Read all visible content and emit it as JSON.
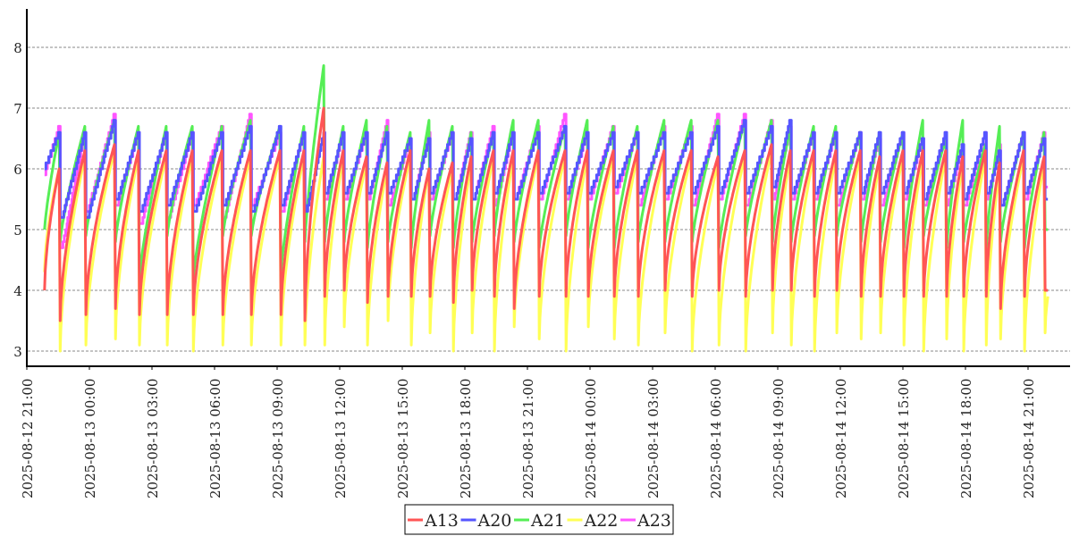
{
  "chart_data": {
    "type": "line",
    "title": "",
    "xlabel": "",
    "ylabel": "",
    "ylim": [
      2.75,
      8.63
    ],
    "y_ticks": [
      "3",
      "4",
      "5",
      "6",
      "7",
      "8"
    ],
    "grid": "horizontal dashed",
    "legend_position": "bottom-center",
    "x_range": [
      "2025-08-12 21:00",
      "2025-08-14 23:00"
    ],
    "x_ticks": [
      "2025-08-12 21:00",
      "2025-08-13 00:00",
      "2025-08-13 03:00",
      "2025-08-13 06:00",
      "2025-08-13 09:00",
      "2025-08-13 12:00",
      "2025-08-13 15:00",
      "2025-08-13 18:00",
      "2025-08-13 21:00",
      "2025-08-14 00:00",
      "2025-08-14 03:00",
      "2025-08-14 06:00",
      "2025-08-14 09:00",
      "2025-08-14 12:00",
      "2025-08-14 15:00",
      "2025-08-14 18:00",
      "2025-08-14 21:00"
    ],
    "data_start": "2025-08-12 21:51",
    "data_end": "2025-08-14 21:57",
    "cycle_peak_times": [
      "2025-08-12 22:33",
      "2025-08-12 23:47",
      "2025-08-13 01:12",
      "2025-08-13 02:21",
      "2025-08-13 03:41",
      "2025-08-13 04:56",
      "2025-08-13 06:21",
      "2025-08-13 07:43",
      "2025-08-13 09:08",
      "2025-08-13 10:17",
      "2025-08-13 11:14",
      "2025-08-13 12:10",
      "2025-08-13 13:17",
      "2025-08-13 14:16",
      "2025-08-13 15:23",
      "2025-08-13 16:17",
      "2025-08-13 17:24",
      "2025-08-13 18:18",
      "2025-08-13 19:22",
      "2025-08-13 20:19",
      "2025-08-13 21:31",
      "2025-08-13 22:48",
      "2025-08-13 23:52",
      "2025-08-14 01:07",
      "2025-08-14 02:16",
      "2025-08-14 03:33",
      "2025-08-14 04:51",
      "2025-08-14 06:08",
      "2025-08-14 07:25",
      "2025-08-14 08:42",
      "2025-08-14 09:36",
      "2025-08-14 10:43",
      "2025-08-14 11:47",
      "2025-08-14 12:57",
      "2025-08-14 13:53",
      "2025-08-14 15:00",
      "2025-08-14 15:57",
      "2025-08-14 17:03",
      "2025-08-14 17:52",
      "2025-08-14 18:57",
      "2025-08-14 19:38",
      "2025-08-14 20:47",
      "2025-08-14 21:46"
    ],
    "series": [
      {
        "name": "A13",
        "color": "#ff5555",
        "shape": "curve",
        "start": 4.0,
        "end": 4.0,
        "peaks": [
          6.0,
          6.3,
          6.4,
          6.3,
          6.3,
          6.3,
          6.3,
          6.3,
          6.3,
          6.3,
          7.0,
          6.3,
          6.2,
          6.1,
          6.3,
          6.0,
          6.1,
          6.2,
          6.3,
          6.3,
          6.3,
          6.3,
          6.3,
          6.3,
          6.3,
          6.3,
          6.3,
          6.2,
          6.3,
          6.4,
          6.3,
          6.3,
          6.3,
          6.3,
          6.2,
          6.3,
          6.3,
          6.3,
          6.2,
          6.3,
          6.1,
          6.3,
          6.2
        ],
        "troughs": [
          3.5,
          3.6,
          3.7,
          3.6,
          3.6,
          3.6,
          3.6,
          3.6,
          3.6,
          3.5,
          3.9,
          4.0,
          3.8,
          3.9,
          3.9,
          3.9,
          3.8,
          4.0,
          3.9,
          3.7,
          3.9,
          3.9,
          3.9,
          3.9,
          3.9,
          4.0,
          3.9,
          4.0,
          3.9,
          4.0,
          4.0,
          3.9,
          4.0,
          3.9,
          3.9,
          3.9,
          3.9,
          3.9,
          3.9,
          3.9,
          3.7,
          3.9,
          4.0
        ]
      },
      {
        "name": "A20",
        "color": "#5555ff",
        "shape": "step",
        "start": 6.0,
        "end": 5.5,
        "peaks": [
          6.6,
          6.6,
          6.8,
          6.6,
          6.6,
          6.6,
          6.6,
          6.7,
          6.7,
          6.6,
          6.6,
          6.6,
          6.6,
          6.6,
          6.5,
          6.5,
          6.6,
          6.5,
          6.6,
          6.6,
          6.6,
          6.7,
          6.6,
          6.6,
          6.6,
          6.6,
          6.6,
          6.7,
          6.8,
          6.7,
          6.8,
          6.6,
          6.6,
          6.6,
          6.6,
          6.6,
          6.5,
          6.6,
          6.4,
          6.6,
          6.3,
          6.6,
          6.5
        ],
        "troughs": [
          5.2,
          5.2,
          5.5,
          5.3,
          5.4,
          5.3,
          5.4,
          5.3,
          5.4,
          5.3,
          5.6,
          5.6,
          5.6,
          5.6,
          5.5,
          5.6,
          5.5,
          5.5,
          5.6,
          5.5,
          5.6,
          5.6,
          5.6,
          5.7,
          5.6,
          5.6,
          5.6,
          5.6,
          5.6,
          5.7,
          5.6,
          5.6,
          5.6,
          5.6,
          5.6,
          5.6,
          5.5,
          5.6,
          5.5,
          5.6,
          5.4,
          5.6,
          5.5
        ]
      },
      {
        "name": "A21",
        "color": "#55ee55",
        "shape": "curve",
        "start": 5.0,
        "end": 5.0,
        "peaks": [
          6.6,
          6.7,
          6.8,
          6.7,
          6.7,
          6.7,
          6.7,
          6.8,
          6.7,
          6.7,
          7.7,
          6.7,
          6.8,
          6.7,
          6.6,
          6.8,
          6.7,
          6.6,
          6.6,
          6.8,
          6.8,
          6.7,
          6.8,
          6.7,
          6.7,
          6.8,
          6.8,
          6.8,
          6.8,
          6.8,
          6.7,
          6.7,
          6.7,
          6.6,
          6.6,
          6.6,
          6.8,
          6.5,
          6.8,
          6.4,
          6.7,
          6.6,
          6.6
        ],
        "troughs": [
          4.8,
          4.9,
          4.8,
          4.2,
          4.9,
          4.2,
          4.9,
          4.9,
          4.3,
          4.8,
          4.8,
          4.8,
          4.7,
          4.8,
          4.7,
          4.9,
          4.7,
          4.8,
          4.9,
          4.8,
          4.7,
          4.9,
          4.7,
          4.7,
          4.8,
          4.8,
          4.8,
          4.7,
          4.9,
          4.8,
          4.8,
          4.9,
          4.9,
          4.8,
          4.8,
          4.7,
          4.9,
          4.7,
          4.8,
          4.7,
          4.8,
          4.7,
          5.0
        ]
      },
      {
        "name": "A22",
        "color": "#ffff55",
        "shape": "curve",
        "start": 4.3,
        "end": 3.9,
        "peaks": [
          6.0,
          6.2,
          6.3,
          6.2,
          6.2,
          6.2,
          6.2,
          6.2,
          6.2,
          6.2,
          6.2,
          6.2,
          6.1,
          6.0,
          6.2,
          6.0,
          6.0,
          6.1,
          6.2,
          6.2,
          6.2,
          6.2,
          6.2,
          6.2,
          6.2,
          6.2,
          6.2,
          6.1,
          6.2,
          6.3,
          6.2,
          6.2,
          6.2,
          6.2,
          6.1,
          6.2,
          6.2,
          6.2,
          6.1,
          6.2,
          6.0,
          6.2,
          6.1
        ],
        "troughs": [
          3.0,
          3.1,
          3.2,
          3.1,
          3.1,
          3.0,
          3.1,
          3.1,
          3.1,
          3.1,
          3.1,
          3.4,
          3.1,
          3.5,
          3.1,
          3.3,
          3.0,
          3.3,
          3.0,
          3.4,
          3.2,
          3.0,
          3.4,
          3.2,
          3.1,
          3.3,
          3.0,
          3.1,
          3.0,
          3.3,
          3.1,
          3.0,
          3.3,
          3.2,
          3.3,
          3.1,
          3.0,
          3.2,
          3.0,
          3.1,
          3.2,
          3.0,
          3.3
        ]
      },
      {
        "name": "A23",
        "color": "#ff55ff",
        "shape": "step",
        "start": 5.9,
        "end": 5.7,
        "peaks": [
          6.7,
          6.6,
          6.9,
          6.6,
          6.6,
          6.6,
          6.7,
          6.9,
          6.6,
          6.6,
          6.6,
          6.6,
          6.6,
          6.8,
          6.5,
          6.6,
          6.6,
          6.6,
          6.7,
          6.6,
          6.7,
          6.9,
          6.6,
          6.7,
          6.6,
          6.7,
          6.7,
          6.9,
          6.9,
          6.8,
          6.7,
          6.6,
          6.6,
          6.6,
          6.5,
          6.6,
          6.5,
          6.6,
          6.4,
          6.6,
          6.4,
          6.6,
          6.6
        ],
        "troughs": [
          4.7,
          5.3,
          5.4,
          5.1,
          5.2,
          5.4,
          5.2,
          5.4,
          5.3,
          5.3,
          5.5,
          5.5,
          5.5,
          5.4,
          5.5,
          5.5,
          5.5,
          5.5,
          5.4,
          5.5,
          5.5,
          5.5,
          5.5,
          5.6,
          5.4,
          5.5,
          5.4,
          5.5,
          5.4,
          5.5,
          5.5,
          5.5,
          5.4,
          5.5,
          5.4,
          5.5,
          5.4,
          5.4,
          5.4,
          5.5,
          5.4,
          5.5,
          5.7
        ]
      }
    ]
  }
}
